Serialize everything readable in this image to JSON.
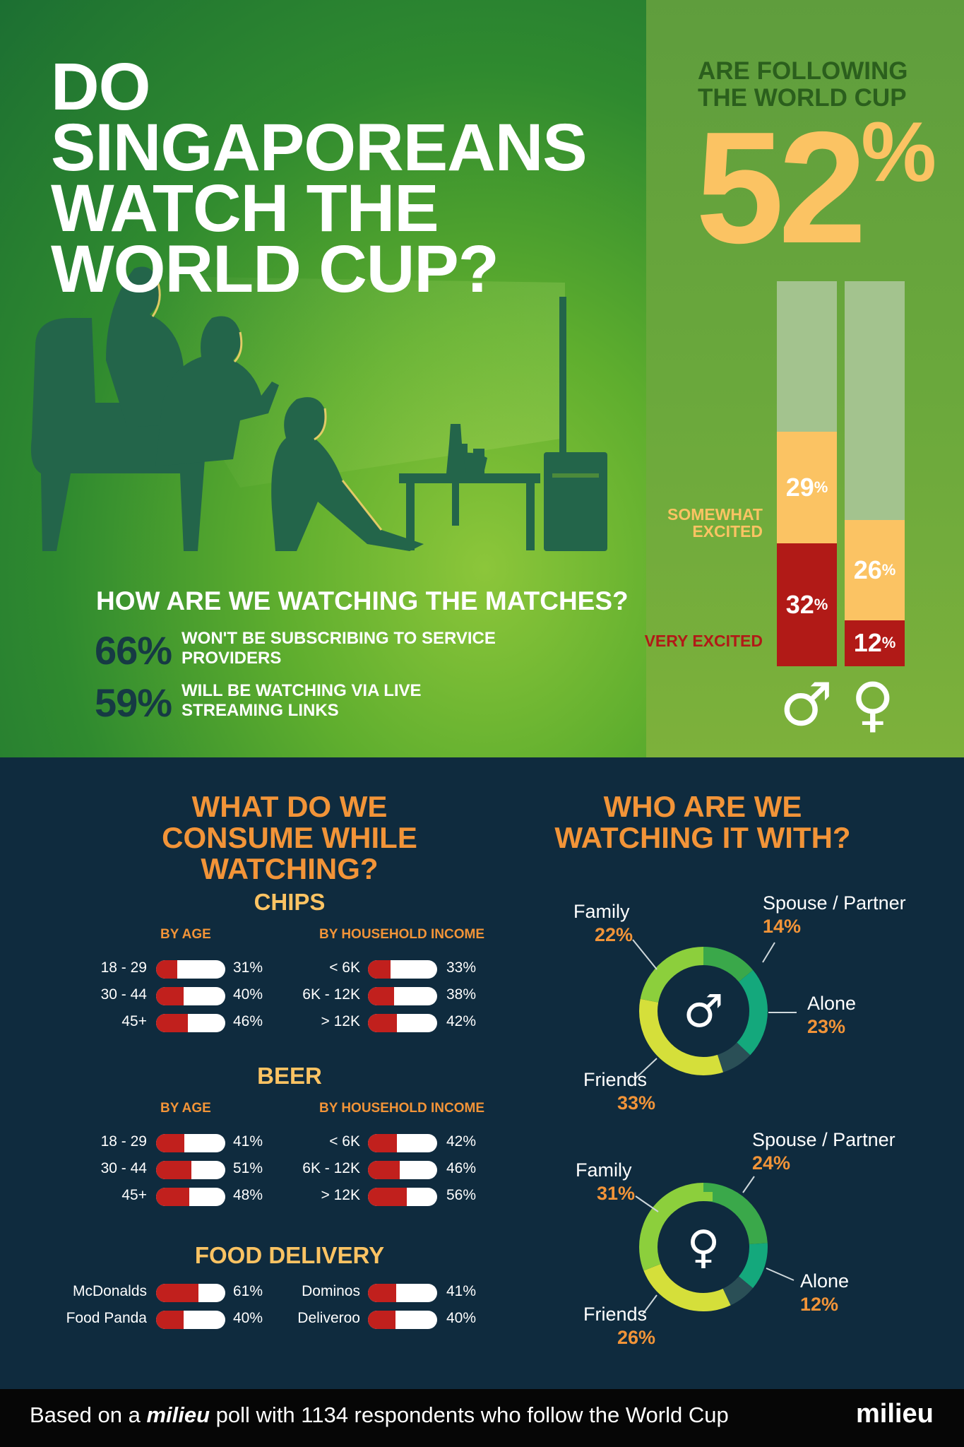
{
  "title": "DO SINGAPOREANS WATCH THE WORLD CUP?",
  "following": {
    "label": "ARE FOLLOWING THE WORLD CUP",
    "value": "52",
    "unit": "%"
  },
  "excitement": {
    "somewhat_label": "SOMEWHAT EXCITED",
    "very_label": "VERY EXCITED",
    "male_symbol": "♂",
    "female_symbol": "♀",
    "colors": {
      "somewhat": "#fbc363",
      "very": "#b11a17",
      "rest": "#a3c38e"
    }
  },
  "watching": {
    "title": "HOW ARE WE WATCHING THE MATCHES?",
    "stats": [
      {
        "value": "66%",
        "text": "WON'T BE SUBSCRIBING TO SERVICE PROVIDERS"
      },
      {
        "value": "59%",
        "text": "WILL BE WATCHING VIA LIVE STREAMING LINKS"
      }
    ]
  },
  "consume": {
    "title": "WHAT DO WE CONSUME WHILE WATCHING?",
    "by_age_label": "BY AGE",
    "by_income_label": "BY HOUSEHOLD INCOME"
  },
  "with": {
    "title": "WHO ARE WE WATCHING IT WITH?"
  },
  "chart_data": [
    {
      "type": "bar",
      "stacked": true,
      "categories": [
        "♂",
        "♀"
      ],
      "series": [
        {
          "name": "VERY EXCITED",
          "values": [
            32,
            12
          ]
        },
        {
          "name": "SOMEWHAT EXCITED",
          "values": [
            29,
            26
          ]
        }
      ],
      "ylim": [
        0,
        100
      ]
    },
    {
      "type": "bar",
      "orientation": "horizontal",
      "title": "CHIPS",
      "groups": [
        {
          "name": "BY AGE",
          "categories": [
            "18 - 29",
            "30 - 44",
            "45+"
          ],
          "values": [
            31,
            40,
            46
          ]
        },
        {
          "name": "BY HOUSEHOLD INCOME",
          "categories": [
            "< 6K",
            "6K - 12K",
            "> 12K"
          ],
          "values": [
            33,
            38,
            42
          ]
        }
      ]
    },
    {
      "type": "bar",
      "orientation": "horizontal",
      "title": "BEER",
      "groups": [
        {
          "name": "BY AGE",
          "categories": [
            "18 - 29",
            "30 - 44",
            "45+"
          ],
          "values": [
            41,
            51,
            48
          ]
        },
        {
          "name": "BY HOUSEHOLD INCOME",
          "categories": [
            "< 6K",
            "6K - 12K",
            "> 12K"
          ],
          "values": [
            42,
            46,
            56
          ]
        }
      ]
    },
    {
      "type": "bar",
      "orientation": "horizontal",
      "title": "FOOD DELIVERY",
      "groups": [
        {
          "categories": [
            "McDonalds",
            "Food Panda"
          ],
          "values": [
            61,
            40
          ]
        },
        {
          "categories": [
            "Dominos",
            "Deliveroo"
          ],
          "values": [
            41,
            40
          ]
        }
      ]
    },
    {
      "type": "pie",
      "donut": true,
      "center_symbol": "♂",
      "slices": [
        {
          "label": "Spouse / Partner",
          "value": 14,
          "color": "#3aa84a"
        },
        {
          "label": "Alone",
          "value": 23,
          "color": "#14a87c"
        },
        {
          "label": "",
          "value": 8,
          "color": "#2a4f56"
        },
        {
          "label": "Friends",
          "value": 33,
          "color": "#d5df3a"
        },
        {
          "label": "Family",
          "value": 22,
          "color": "#8ccf3c"
        }
      ]
    },
    {
      "type": "pie",
      "donut": true,
      "center_symbol": "♀",
      "slices": [
        {
          "label": "Spouse / Partner",
          "value": 24,
          "color": "#3aa84a"
        },
        {
          "label": "Alone",
          "value": 12,
          "color": "#14a87c"
        },
        {
          "label": "",
          "value": 7,
          "color": "#2a4f56"
        },
        {
          "label": "Friends",
          "value": 26,
          "color": "#d5df3a"
        },
        {
          "label": "Family",
          "value": 31,
          "color": "#8ccf3c"
        }
      ]
    }
  ],
  "footer": {
    "prefix": "Based on a ",
    "brand_italic": "milieu",
    "suffix": " poll with 1134 respondents who follow the World Cup",
    "logo": "milieu"
  }
}
